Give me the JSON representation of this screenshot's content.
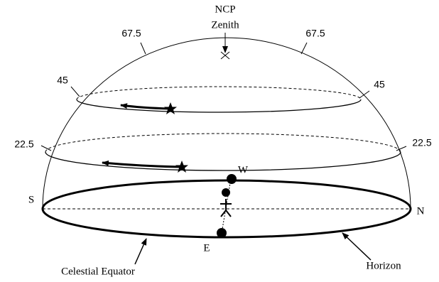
{
  "pole": {
    "ncp": "NCP",
    "zenith": "Zenith"
  },
  "altitudes": [
    {
      "left": "67.5",
      "right": "67.5"
    },
    {
      "left": "45",
      "right": "45"
    },
    {
      "left": "22.5",
      "right": "22.5"
    }
  ],
  "directions": {
    "south": "S",
    "north": "N",
    "west": "W",
    "east": "E"
  },
  "annotations": {
    "celestial_equator": "Celestial Equator",
    "horizon": "Horizon"
  }
}
